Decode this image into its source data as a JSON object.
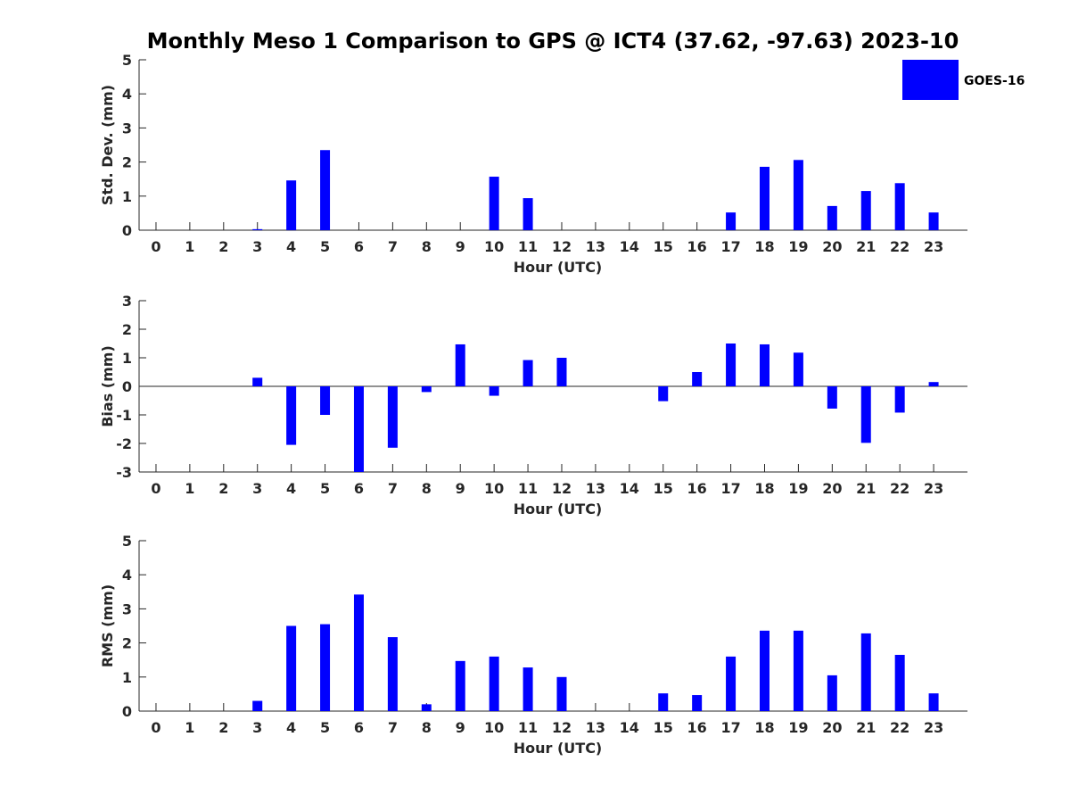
{
  "chart_data": {
    "type": "bar",
    "title": "Monthly Meso 1 Comparison to GPS @ ICT4 (37.62, -97.63) 2023-10",
    "legend": {
      "entries": [
        "GOES-16"
      ],
      "placement": "top-right"
    },
    "series_color": "#0000ff",
    "axis_color": "#262626",
    "panels": [
      {
        "name": "std-dev",
        "xlabel": "Hour (UTC)",
        "ylabel": "Std. Dev. (mm)",
        "ylim": [
          0,
          5
        ],
        "yticks": [
          0,
          1,
          2,
          3,
          4,
          5
        ],
        "categories": [
          "0",
          "1",
          "2",
          "3",
          "4",
          "5",
          "6",
          "7",
          "8",
          "9",
          "10",
          "11",
          "12",
          "13",
          "14",
          "15",
          "16",
          "17",
          "18",
          "19",
          "20",
          "21",
          "22",
          "23"
        ],
        "series": [
          {
            "name": "GOES-16",
            "values": [
              0,
              0,
              0,
              0.03,
              1.46,
              2.35,
              0,
              0,
              0,
              0,
              1.57,
              0.94,
              0,
              0,
              0,
              0,
              0,
              0.52,
              1.86,
              2.06,
              0.71,
              1.15,
              1.38,
              0.52
            ]
          }
        ]
      },
      {
        "name": "bias",
        "xlabel": "Hour (UTC)",
        "ylabel": "Bias (mm)",
        "ylim": [
          -3,
          3
        ],
        "yticks": [
          -3,
          -2,
          -1,
          0,
          1,
          2,
          3
        ],
        "categories": [
          "0",
          "1",
          "2",
          "3",
          "4",
          "5",
          "6",
          "7",
          "8",
          "9",
          "10",
          "11",
          "12",
          "13",
          "14",
          "15",
          "16",
          "17",
          "18",
          "19",
          "20",
          "21",
          "22",
          "23"
        ],
        "series": [
          {
            "name": "GOES-16",
            "values": [
              0,
              0,
              0,
              0.3,
              -2.05,
              -1.0,
              -3.0,
              -2.15,
              -0.2,
              1.47,
              -0.33,
              0.92,
              1.0,
              0,
              0,
              -0.52,
              0.5,
              1.5,
              1.47,
              1.18,
              -0.78,
              -1.98,
              -0.92,
              0.15
            ]
          }
        ]
      },
      {
        "name": "rms",
        "xlabel": "Hour (UTC)",
        "ylabel": "RMS (mm)",
        "ylim": [
          0,
          5
        ],
        "yticks": [
          0,
          1,
          2,
          3,
          4,
          5
        ],
        "categories": [
          "0",
          "1",
          "2",
          "3",
          "4",
          "5",
          "6",
          "7",
          "8",
          "9",
          "10",
          "11",
          "12",
          "13",
          "14",
          "15",
          "16",
          "17",
          "18",
          "19",
          "20",
          "21",
          "22",
          "23"
        ],
        "series": [
          {
            "name": "GOES-16",
            "values": [
              0,
              0,
              0,
              0.3,
              2.5,
              2.55,
              3.42,
              2.17,
              0.2,
              1.47,
              1.6,
              1.28,
              1.0,
              0,
              0,
              0.52,
              0.47,
              1.6,
              2.36,
              2.36,
              1.05,
              2.28,
              1.65,
              0.52
            ]
          }
        ]
      }
    ]
  }
}
